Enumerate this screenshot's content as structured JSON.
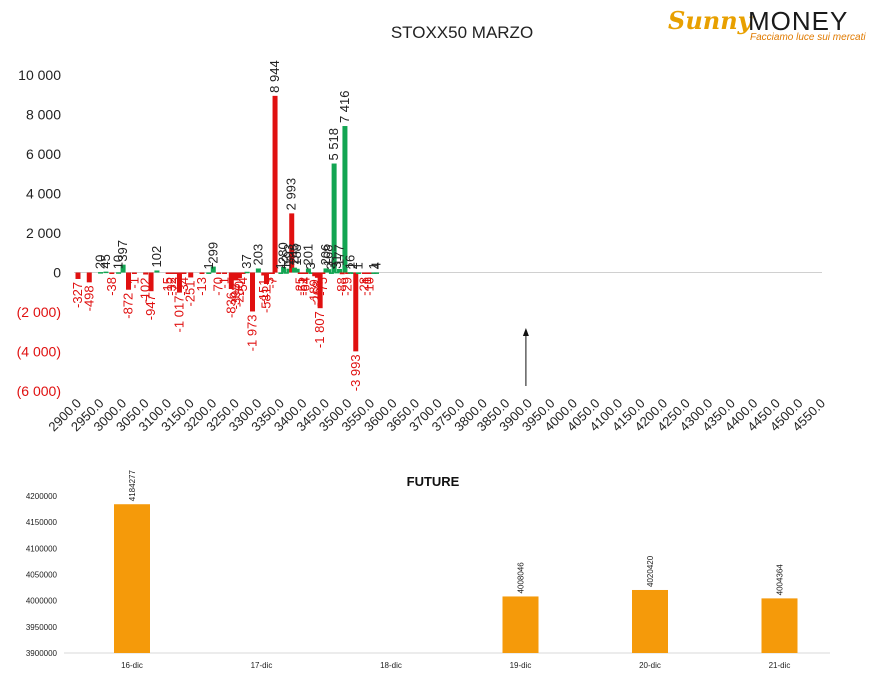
{
  "logo": {
    "brand_left": "Sunny",
    "brand_right": "MONEY",
    "tagline": "Facciamo luce sui mercati"
  },
  "colors": {
    "positive": "#12a552",
    "negative": "#e01010",
    "future": "#f59a0a",
    "text_negative": "#e01010",
    "text_positive": "#222222"
  },
  "chart_data": [
    {
      "type": "bar",
      "title": "STOXX50 MARZO",
      "ylim": [
        -6000,
        10000
      ],
      "yticks": [
        "10 000",
        "8 000",
        "6 000",
        "4 000",
        "2 000",
        "0",
        "(2 000)",
        "(4 000)",
        "(6 000)"
      ],
      "ytick_values": [
        10000,
        8000,
        6000,
        4000,
        2000,
        0,
        -2000,
        -4000,
        -6000
      ],
      "categories": [
        "2900.0",
        "2950.0",
        "3000.0",
        "3050.0",
        "3100.0",
        "3150.0",
        "3200.0",
        "3250.0",
        "3300.0",
        "3350.0",
        "3400.0",
        "3450.0",
        "3500.0",
        "3550.0",
        "3600.0",
        "3650.0",
        "3700.0",
        "3750.0",
        "3800.0",
        "3850.0",
        "3900.0",
        "3950.0",
        "4000.0",
        "4050.0",
        "4100.0",
        "4150.0",
        "4200.0",
        "4250.0",
        "4300.0",
        "4350.0",
        "4400.0",
        "4450.0",
        "4500.0",
        "4550.0"
      ],
      "bars": [
        {
          "x": 2900,
          "v": -327,
          "label": "-327"
        },
        {
          "x": 2925,
          "v": -498,
          "label": "-498"
        },
        {
          "x": 2950,
          "v": 20,
          "label": "20"
        },
        {
          "x": 2962,
          "v": 45,
          "label": "45"
        },
        {
          "x": 2975,
          "v": -38,
          "label": "-38"
        },
        {
          "x": 2990,
          "v": 10,
          "label": "10"
        },
        {
          "x": 3000,
          "v": 397,
          "label": "397"
        },
        {
          "x": 3012,
          "v": -872,
          "label": "-872"
        },
        {
          "x": 3025,
          "v": -1,
          "label": "-1"
        },
        {
          "x": 3050,
          "v": -102,
          "label": "-102"
        },
        {
          "x": 3062,
          "v": -947,
          "label": "-947"
        },
        {
          "x": 3075,
          "v": 102,
          "label": "102"
        },
        {
          "x": 3100,
          "v": -15,
          "label": "-15"
        },
        {
          "x": 3108,
          "v": -32,
          "label": "-32"
        },
        {
          "x": 3116,
          "v": -73,
          "label": "-73"
        },
        {
          "x": 3125,
          "v": -1017,
          "label": "-1 017"
        },
        {
          "x": 3135,
          "v": -34,
          "label": "-34"
        },
        {
          "x": 3150,
          "v": -251,
          "label": "-251"
        },
        {
          "x": 3175,
          "v": -13,
          "label": "-13"
        },
        {
          "x": 3190,
          "v": 1,
          "label": "1"
        },
        {
          "x": 3200,
          "v": 299,
          "label": "299"
        },
        {
          "x": 3212,
          "v": -70,
          "label": "-70"
        },
        {
          "x": 3225,
          "v": -1,
          "label": "-1"
        },
        {
          "x": 3240,
          "v": -836,
          "label": "-836"
        },
        {
          "x": 3250,
          "v": -398,
          "label": "-398"
        },
        {
          "x": 3258,
          "v": -280,
          "label": "-280"
        },
        {
          "x": 3266,
          "v": -54,
          "label": "-54"
        },
        {
          "x": 3275,
          "v": 37,
          "label": "37"
        },
        {
          "x": 3287,
          "v": -1973,
          "label": "-1 973"
        },
        {
          "x": 3300,
          "v": 203,
          "label": "203"
        },
        {
          "x": 3312,
          "v": -151,
          "label": "-151"
        },
        {
          "x": 3318,
          "v": -581,
          "label": "-581"
        },
        {
          "x": 3325,
          "v": -3,
          "label": "-3"
        },
        {
          "x": 3331,
          "v": -7,
          "label": "-7"
        },
        {
          "x": 3337,
          "v": 8944,
          "label": "8 944"
        },
        {
          "x": 3350,
          "v": 1,
          "label": "1"
        },
        {
          "x": 3356,
          "v": 280,
          "label": "280"
        },
        {
          "x": 3362,
          "v": 12,
          "label": "12"
        },
        {
          "x": 3368,
          "v": 193,
          "label": "193"
        },
        {
          "x": 3374,
          "v": 2993,
          "label": "2 993"
        },
        {
          "x": 3380,
          "v": 245,
          "label": "245"
        },
        {
          "x": 3386,
          "v": 188,
          "label": "188"
        },
        {
          "x": 3393,
          "v": -25,
          "label": "-25"
        },
        {
          "x": 3399,
          "v": -51,
          "label": "-51"
        },
        {
          "x": 3405,
          "v": -64,
          "label": "-64"
        },
        {
          "x": 3411,
          "v": 201,
          "label": "201"
        },
        {
          "x": 3417,
          "v": 3,
          "label": "3"
        },
        {
          "x": 3425,
          "v": -189,
          "label": "-189"
        },
        {
          "x": 3431,
          "v": -268,
          "label": "-268"
        },
        {
          "x": 3437,
          "v": -1807,
          "label": "-1 807"
        },
        {
          "x": 3443,
          "v": -75,
          "label": "-75"
        },
        {
          "x": 3450,
          "v": 206,
          "label": "206"
        },
        {
          "x": 3456,
          "v": 168,
          "label": "168"
        },
        {
          "x": 3462,
          "v": 3,
          "label": "3"
        },
        {
          "x": 3468,
          "v": 5518,
          "label": "5 518"
        },
        {
          "x": 3474,
          "v": 31,
          "label": "31"
        },
        {
          "x": 3480,
          "v": 177,
          "label": "177"
        },
        {
          "x": 3486,
          "v": -88,
          "label": "-88"
        },
        {
          "x": 3492,
          "v": 7416,
          "label": "7 416"
        },
        {
          "x": 3498,
          "v": -29,
          "label": "-29"
        },
        {
          "x": 3504,
          "v": 16,
          "label": "16"
        },
        {
          "x": 3510,
          "v": 2,
          "label": "2"
        },
        {
          "x": 3516,
          "v": -3993,
          "label": "-3 993"
        },
        {
          "x": 3522,
          "v": 1,
          "label": "1"
        },
        {
          "x": 3535,
          "v": -28,
          "label": "-28"
        },
        {
          "x": 3541,
          "v": -1,
          "label": "-1"
        },
        {
          "x": 3547,
          "v": -10,
          "label": "-10"
        },
        {
          "x": 3556,
          "v": 1,
          "label": "1"
        },
        {
          "x": 3562,
          "v": 4,
          "label": "4"
        }
      ],
      "arrow_at": "3900.0"
    },
    {
      "type": "bar",
      "title": "FUTURE",
      "ylim": [
        3900000,
        4200000
      ],
      "yticks": [
        "4200000",
        "4150000",
        "4100000",
        "4050000",
        "4000000",
        "3950000",
        "3900000"
      ],
      "ytick_values": [
        4200000,
        4150000,
        4100000,
        4050000,
        4000000,
        3950000,
        3900000
      ],
      "categories": [
        "16-dic",
        "17-dic",
        "18-dic",
        "19-dic",
        "20-dic",
        "21-dic"
      ],
      "values": [
        4184277,
        null,
        null,
        4008046,
        4020420,
        4004364
      ],
      "labels": [
        "4184277",
        "",
        "",
        "4008046",
        "4020420",
        "4004364"
      ]
    }
  ]
}
